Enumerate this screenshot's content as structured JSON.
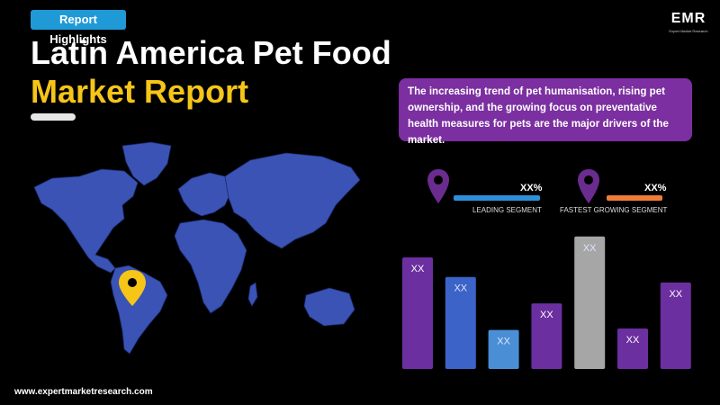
{
  "header": {
    "badge": "Report Highlights",
    "title_line1": "Latin America Pet Food",
    "title_line2": "Market Report"
  },
  "logo": {
    "text": "EMR",
    "sub": "Expert Market Research"
  },
  "callout": {
    "text": "The increasing trend of pet humanisation,  rising pet ownership, and the growing focus on preventative health measures for pets are the major drivers of the market."
  },
  "segments": {
    "leading": {
      "label": "LEADING SEGMENT",
      "value": "XX%",
      "color": "#2f8fd8"
    },
    "fastest": {
      "label": "FASTEST GROWING SEGMENT",
      "value": "XX%",
      "color": "#f07c3a"
    }
  },
  "colors": {
    "accent_yellow": "#f5c518",
    "purple": "#7b2fa0",
    "map_blue": "#3a53b5",
    "pin_purple": "#6a2c8e"
  },
  "chart_data": {
    "type": "bar",
    "categories": [
      "",
      "",
      "",
      "",
      "",
      "",
      ""
    ],
    "values": [
      80,
      66,
      28,
      47,
      95,
      29,
      62
    ],
    "data_labels": [
      "XX",
      "XX",
      "XX",
      "XX",
      "XX",
      "XX",
      "XX"
    ],
    "colors": [
      "#6b2fa0",
      "#3c63c8",
      "#4a8fd6",
      "#6b2fa0",
      "#a6a6a6",
      "#6b2fa0",
      "#6b2fa0"
    ],
    "ylim": [
      0,
      100
    ],
    "grid": false
  },
  "footer": {
    "url": "www.expertmarketresearch.com"
  }
}
